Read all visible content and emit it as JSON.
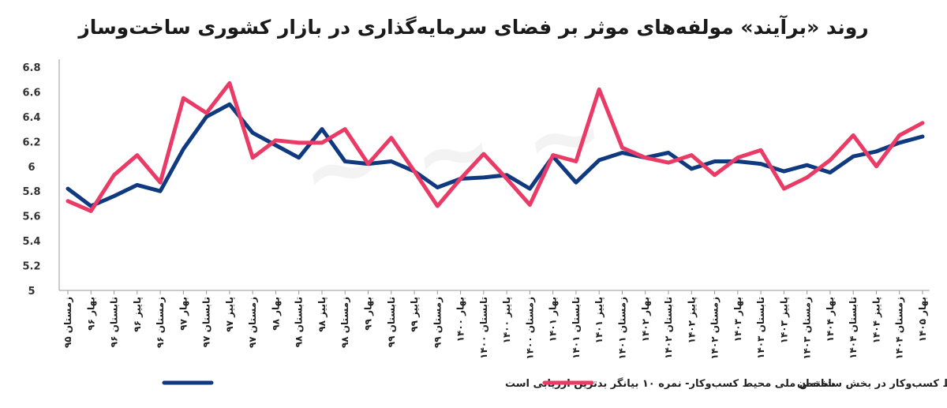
{
  "title": "روند «برآیند» مولفه‌های موثر بر فضای سرمایه‌گذاری در بازار کشوری ساخت‌وساز",
  "colors": {
    "navy": "#0f3a80",
    "pink": "#ea3a66"
  },
  "chart_data": {
    "type": "line",
    "title": "روند «برآیند» مولفه‌های موثر بر فضای سرمایه‌گذاری در بازار کشوری ساخت‌وساز",
    "ylim": [
      5,
      6.8
    ],
    "yticks": [
      "5",
      "5.2",
      "5.4",
      "5.6",
      "5.8",
      "6",
      "6.2",
      "6.4",
      "6.6",
      "6.8"
    ],
    "ytick_values": [
      5,
      5.2,
      5.4,
      5.6,
      5.8,
      6,
      6.2,
      6.4,
      6.6,
      6.8
    ],
    "grid": false,
    "categories": [
      "زمستان ۹۵",
      "بهار ۹۶",
      "تابستان ۹۶",
      "پاییز ۹۶",
      "زمستان ۹۶",
      "بهار ۹۷",
      "تابستان ۹۷",
      "پاییز ۹۷",
      "زمستان ۹۷",
      "بهار ۹۸",
      "تابستان ۹۸",
      "پاییز ۹۸",
      "زمستان ۹۸",
      "بهار ۹۹",
      "تابستان ۹۹",
      "پاییز ۹۹",
      "زمستان ۹۹",
      "بهار ۱۴۰۰",
      "تابستان ۱۴۰۰",
      "پاییز ۱۴۰۰",
      "زمستان ۱۴۰۰",
      "بهار ۱۴۰۱",
      "تابستان ۱۴۰۱",
      "پاییز ۱۴۰۱",
      "زمستان ۱۴۰۱",
      "بهار ۱۴۰۲",
      "تابستان ۱۴۰۲",
      "پاییز ۱۴۰۲",
      "زمستان ۱۴۰۲",
      "بهار ۱۴۰۳",
      "تابستان ۱۴۰۳",
      "پاییز ۱۴۰۳",
      "زمستان ۱۴۰۳",
      "بهار ۱۴۰۴",
      "تابستان ۱۴۰۴",
      "پاییز ۱۴۰۴",
      "زمستان ۱۴۰۴",
      "بهار ۱۴۰۵"
    ],
    "series": [
      {
        "name": "شاخص ملی محیط کسب‌وکار- نمره ۱۰ بیانگر بدترین ارزیابی است",
        "color": "#0f3a80",
        "values": [
          5.82,
          5.68,
          5.76,
          5.85,
          5.8,
          6.14,
          6.4,
          6.5,
          6.27,
          6.17,
          6.07,
          6.3,
          6.04,
          6.02,
          6.04,
          5.96,
          5.83,
          5.9,
          5.91,
          5.93,
          5.82,
          6.08,
          5.87,
          6.05,
          6.11,
          6.07,
          6.11,
          5.98,
          6.04,
          6.04,
          6.02,
          5.96,
          6.01,
          5.95,
          6.08,
          6.12,
          6.19,
          6.24
        ]
      },
      {
        "name": "شاخص محیط کسب‌وکار در بخش ساختمان",
        "color": "#ea3a66",
        "values": [
          5.72,
          5.64,
          5.93,
          6.09,
          5.87,
          6.55,
          6.43,
          6.67,
          6.07,
          6.21,
          6.19,
          6.19,
          6.3,
          6.02,
          6.23,
          5.96,
          5.68,
          5.9,
          6.1,
          5.9,
          5.69,
          6.09,
          6.04,
          6.62,
          6.15,
          6.07,
          6.03,
          6.09,
          5.93,
          6.07,
          6.13,
          5.82,
          5.91,
          6.05,
          6.25,
          6.0,
          6.25,
          6.35
        ]
      }
    ],
    "legend_position": "bottom"
  }
}
